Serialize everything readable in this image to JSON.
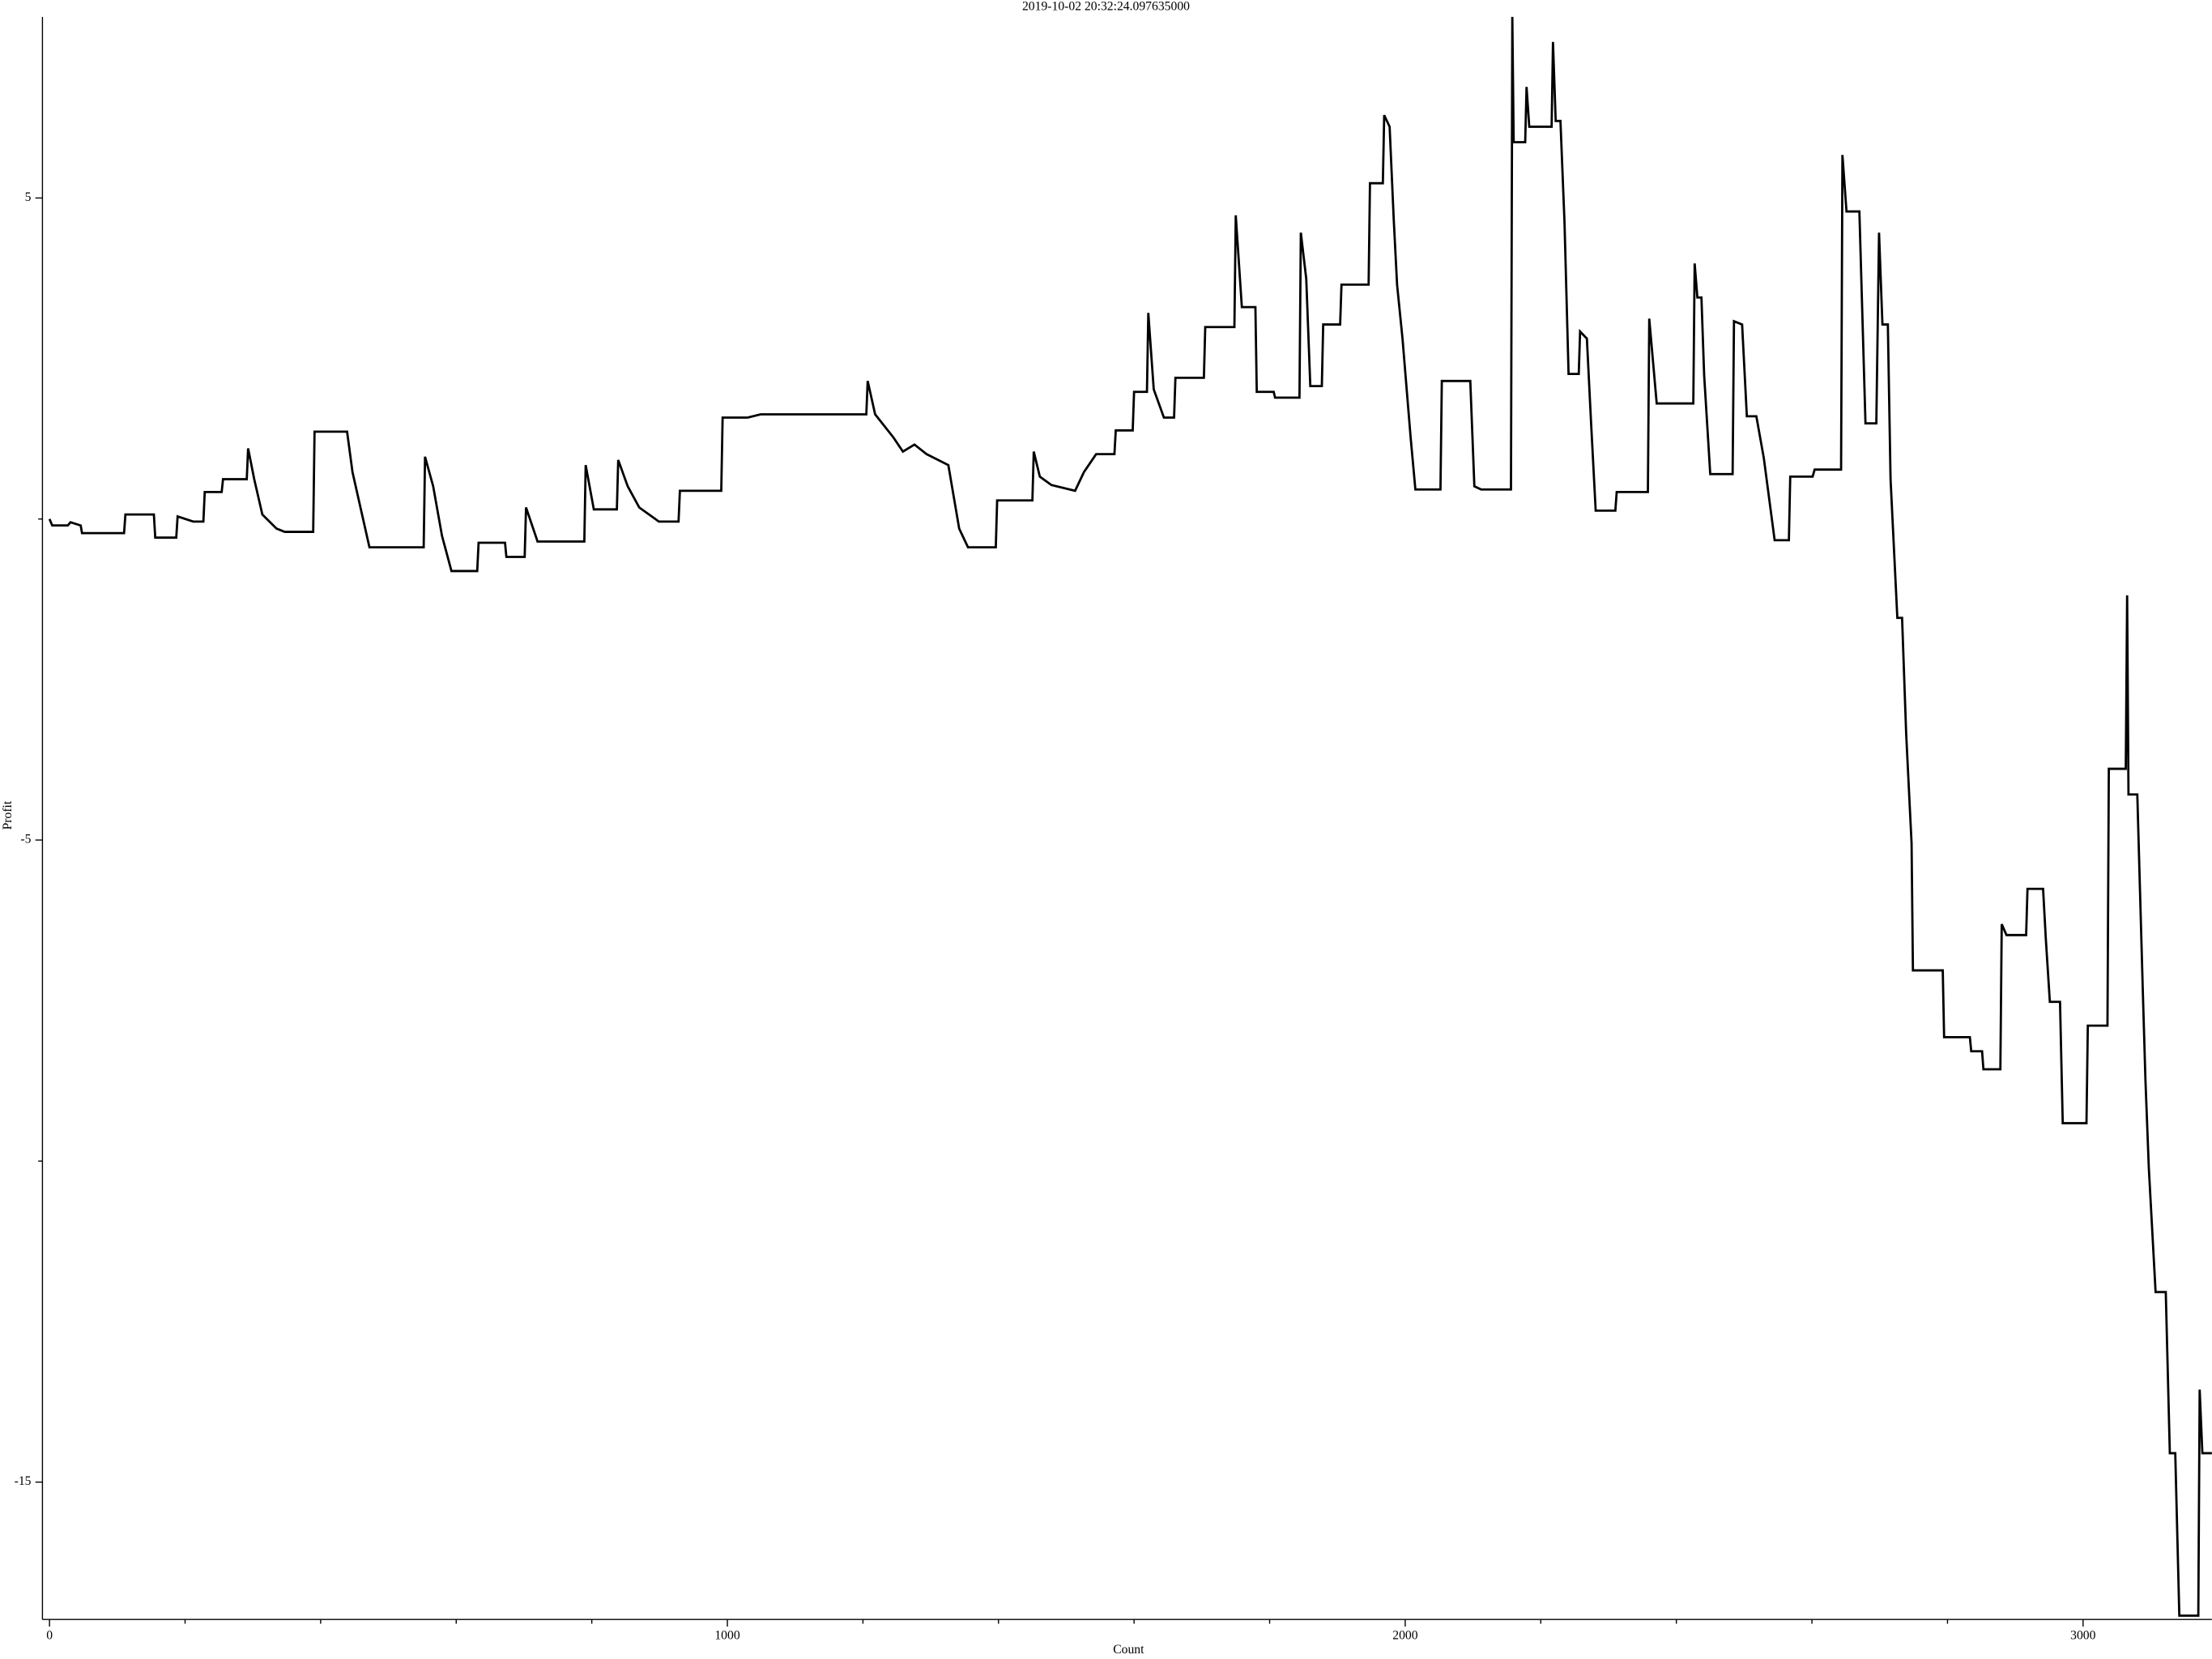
{
  "chart_data": {
    "type": "line",
    "title": "2019-10-02 20:32:24.097635000",
    "x_label": "Count",
    "y_label": "Profit",
    "color": "#000000",
    "xlim": [
      -10.4,
      3190
    ],
    "ylim": [
      -17.14,
      7.82
    ],
    "xticks": [
      0,
      1000,
      2000,
      3000
    ],
    "xminor_ticks": [
      200,
      400,
      600,
      800,
      1200,
      1400,
      1600,
      1800,
      2200,
      2400,
      2600,
      2800
    ],
    "yticks": [
      5,
      -5,
      -15
    ],
    "yminor_ticks": [
      0,
      -10
    ],
    "x": [
      0,
      4,
      27,
      31,
      46,
      48,
      110,
      112,
      154,
      156,
      187,
      189,
      212,
      227,
      229,
      254,
      256,
      291,
      293,
      302,
      314,
      335,
      347,
      389,
      391,
      439,
      447,
      472,
      552,
      554,
      566,
      579,
      593,
      631,
      633,
      672,
      674,
      701,
      703,
      720,
      789,
      791,
      803,
      837,
      839,
      853,
      870,
      899,
      928,
      930,
      991,
      993,
      1030,
      1049,
      1205,
      1207,
      1218,
      1245,
      1259,
      1276,
      1294,
      1326,
      1342,
      1355,
      1396,
      1398,
      1450,
      1452,
      1461,
      1478,
      1513,
      1526,
      1544,
      1571,
      1573,
      1598,
      1600,
      1619,
      1621,
      1629,
      1644,
      1659,
      1661,
      1703,
      1705,
      1748,
      1750,
      1759,
      1779,
      1781,
      1806,
      1808,
      1844,
      1846,
      1854,
      1860,
      1877,
      1879,
      1904,
      1906,
      1946,
      1948,
      1967,
      1969,
      1977,
      1983,
      1988,
      1996,
      2008,
      2015,
      2052,
      2054,
      2096,
      2102,
      2112,
      2156,
      2158,
      2160,
      2177,
      2179,
      2183,
      2216,
      2218,
      2222,
      2229,
      2235,
      2241,
      2256,
      2258,
      2268,
      2274,
      2281,
      2310,
      2312,
      2358,
      2360,
      2371,
      2425,
      2427,
      2431,
      2437,
      2441,
      2450,
      2483,
      2485,
      2497,
      2504,
      2518,
      2529,
      2545,
      2566,
      2568,
      2601,
      2604,
      2643,
      2645,
      2651,
      2670,
      2679,
      2695,
      2699,
      2704,
      2712,
      2716,
      2726,
      2733,
      2739,
      2747,
      2749,
      2793,
      2795,
      2833,
      2835,
      2851,
      2853,
      2878,
      2880,
      2887,
      2916,
      2918,
      2941,
      2945,
      2951,
      2966,
      2970,
      3005,
      3007,
      3036,
      3038,
      3063,
      3065,
      3067,
      3080,
      3088,
      3092,
      3097,
      3107,
      3122,
      3128,
      3136,
      3142,
      3170,
      3172,
      3176,
      3190
    ],
    "values": [
      0,
      -0.1,
      -0.1,
      -0.05,
      -0.1,
      -0.22,
      -0.22,
      0.07,
      0.07,
      -0.29,
      -0.29,
      0.04,
      -0.04,
      -0.04,
      0.42,
      0.42,
      0.62,
      0.62,
      1.1,
      0.62,
      0.07,
      -0.15,
      -0.2,
      -0.2,
      1.36,
      1.36,
      0.73,
      -0.44,
      -0.44,
      0.97,
      0.51,
      -0.26,
      -0.81,
      -0.81,
      -0.37,
      -0.37,
      -0.59,
      -0.59,
      0.18,
      -0.35,
      -0.35,
      0.84,
      0.15,
      0.15,
      0.92,
      0.51,
      0.18,
      -0.04,
      -0.04,
      0.44,
      0.44,
      1.58,
      1.58,
      1.63,
      1.63,
      2.15,
      1.63,
      1.27,
      1.05,
      1.16,
      1.01,
      0.84,
      -0.15,
      -0.44,
      -0.44,
      0.29,
      0.29,
      1.05,
      0.66,
      0.53,
      0.44,
      0.73,
      1.01,
      1.01,
      1.38,
      1.38,
      1.98,
      1.98,
      3.21,
      2.02,
      1.58,
      1.58,
      2.2,
      2.2,
      2.99,
      2.99,
      4.73,
      3.3,
      3.3,
      1.98,
      1.98,
      1.89,
      1.89,
      4.46,
      3.74,
      2.07,
      2.07,
      3.03,
      3.03,
      3.65,
      3.65,
      5.23,
      5.23,
      6.29,
      6.11,
      4.68,
      3.65,
      2.81,
      1.27,
      0.46,
      0.46,
      2.15,
      2.15,
      0.51,
      0.46,
      0.46,
      7.82,
      5.87,
      5.87,
      6.73,
      6.11,
      6.11,
      7.43,
      6.2,
      6.2,
      4.62,
      2.26,
      2.26,
      2.92,
      2.81,
      1.54,
      0.13,
      0.13,
      0.42,
      0.42,
      3.12,
      1.8,
      1.8,
      3.98,
      3.45,
      3.45,
      2.24,
      0.7,
      0.7,
      3.08,
      3.03,
      1.6,
      1.6,
      0.95,
      -0.33,
      -0.33,
      0.66,
      0.66,
      0.77,
      0.77,
      5.67,
      4.79,
      4.79,
      1.49,
      1.49,
      4.46,
      3.03,
      3.03,
      0.62,
      -1.54,
      -1.54,
      -3.34,
      -5.05,
      -7.03,
      -7.03,
      -8.07,
      -8.07,
      -8.29,
      -8.29,
      -8.57,
      -8.57,
      -6.31,
      -6.48,
      -6.48,
      -5.76,
      -5.76,
      -6.53,
      -7.52,
      -7.52,
      -9.41,
      -9.41,
      -7.89,
      -7.89,
      -3.89,
      -3.89,
      -1.19,
      -4.29,
      -4.29,
      -7.3,
      -8.73,
      -10.11,
      -12.04,
      -12.04,
      -14.55,
      -14.55,
      -17.08,
      -17.08,
      -13.56,
      -14.55,
      -14.55
    ]
  }
}
